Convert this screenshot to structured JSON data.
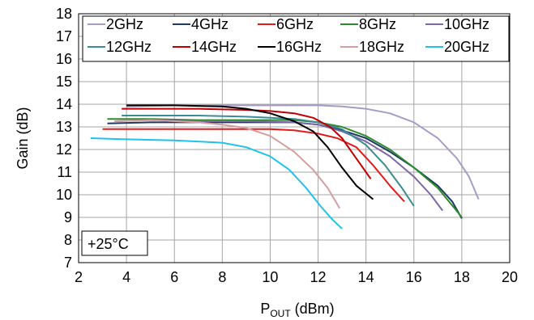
{
  "chart_data": {
    "type": "line",
    "xlabel": {
      "main": "P",
      "sub": "OUT",
      "unit": " (dBm)"
    },
    "ylabel": "Gain (dB)",
    "xlim": [
      2,
      20
    ],
    "ylim": [
      7,
      18
    ],
    "xticks": [
      2,
      4,
      6,
      8,
      10,
      12,
      14,
      16,
      18,
      20
    ],
    "yticks": [
      7,
      8,
      9,
      10,
      11,
      12,
      13,
      14,
      15,
      16,
      17,
      18
    ],
    "grid": true,
    "legend_position": "top",
    "annotation": "+25°C",
    "series": [
      {
        "name": "2GHz",
        "color": "#a99bc7",
        "points": [
          [
            4.0,
            13.9
          ],
          [
            6,
            13.95
          ],
          [
            8,
            13.95
          ],
          [
            10,
            13.95
          ],
          [
            12,
            13.95
          ],
          [
            13,
            13.9
          ],
          [
            14,
            13.8
          ],
          [
            15,
            13.6
          ],
          [
            16,
            13.2
          ],
          [
            17,
            12.5
          ],
          [
            17.8,
            11.6
          ],
          [
            18.3,
            10.8
          ],
          [
            18.7,
            9.8
          ]
        ]
      },
      {
        "name": "4GHz",
        "color": "#1f3864",
        "points": [
          [
            3.2,
            13.15
          ],
          [
            5,
            13.2
          ],
          [
            7,
            13.2
          ],
          [
            9,
            13.2
          ],
          [
            11,
            13.2
          ],
          [
            12,
            13.1
          ],
          [
            13,
            12.85
          ],
          [
            14,
            12.5
          ],
          [
            15,
            11.9
          ],
          [
            16,
            11.2
          ],
          [
            17,
            10.4
          ],
          [
            17.6,
            9.7
          ],
          [
            18,
            8.95
          ]
        ]
      },
      {
        "name": "6GHz",
        "color": "#e31a1c",
        "points": [
          [
            3.0,
            12.9
          ],
          [
            5,
            12.9
          ],
          [
            7,
            12.9
          ],
          [
            9,
            12.9
          ],
          [
            10,
            12.9
          ],
          [
            11,
            12.85
          ],
          [
            12,
            12.7
          ],
          [
            12.8,
            12.5
          ],
          [
            13.6,
            12.1
          ],
          [
            14.3,
            11.3
          ],
          [
            15,
            10.4
          ],
          [
            15.6,
            9.7
          ]
        ]
      },
      {
        "name": "8GHz",
        "color": "#2d8b2d",
        "points": [
          [
            3.2,
            13.35
          ],
          [
            5,
            13.35
          ],
          [
            7,
            13.3
          ],
          [
            9,
            13.3
          ],
          [
            10,
            13.3
          ],
          [
            11,
            13.3
          ],
          [
            12,
            13.2
          ],
          [
            13,
            13.0
          ],
          [
            14,
            12.6
          ],
          [
            15,
            12.0
          ],
          [
            16,
            11.2
          ],
          [
            17,
            10.3
          ],
          [
            17.7,
            9.4
          ],
          [
            18,
            9.0
          ]
        ]
      },
      {
        "name": "10GHz",
        "color": "#7b68a6",
        "points": [
          [
            3.5,
            13.25
          ],
          [
            5,
            13.3
          ],
          [
            7,
            13.25
          ],
          [
            9,
            13.25
          ],
          [
            11,
            13.2
          ],
          [
            12,
            13.1
          ],
          [
            13,
            12.8
          ],
          [
            14,
            12.35
          ],
          [
            15,
            11.7
          ],
          [
            16,
            10.8
          ],
          [
            16.7,
            10.0
          ],
          [
            17.2,
            9.3
          ]
        ]
      },
      {
        "name": "12GHz",
        "color": "#3a8d93",
        "points": [
          [
            3.8,
            13.5
          ],
          [
            5,
            13.5
          ],
          [
            7,
            13.5
          ],
          [
            9,
            13.45
          ],
          [
            10,
            13.4
          ],
          [
            11,
            13.35
          ],
          [
            12,
            13.2
          ],
          [
            13,
            12.9
          ],
          [
            14,
            12.2
          ],
          [
            14.8,
            11.3
          ],
          [
            15.5,
            10.3
          ],
          [
            16.0,
            9.5
          ]
        ]
      },
      {
        "name": "14GHz",
        "color": "#c00000",
        "points": [
          [
            3.8,
            13.8
          ],
          [
            5,
            13.8
          ],
          [
            7,
            13.8
          ],
          [
            9,
            13.75
          ],
          [
            10,
            13.7
          ],
          [
            11,
            13.6
          ],
          [
            11.8,
            13.4
          ],
          [
            12.5,
            13.0
          ],
          [
            13,
            12.5
          ],
          [
            13.6,
            11.6
          ],
          [
            14.2,
            10.7
          ]
        ]
      },
      {
        "name": "16GHz",
        "color": "#000000",
        "points": [
          [
            4.0,
            13.95
          ],
          [
            6,
            13.95
          ],
          [
            8,
            13.9
          ],
          [
            9,
            13.8
          ],
          [
            10,
            13.6
          ],
          [
            11,
            13.25
          ],
          [
            11.8,
            12.8
          ],
          [
            12.4,
            12.1
          ],
          [
            13,
            11.2
          ],
          [
            13.6,
            10.4
          ],
          [
            14.3,
            9.8
          ]
        ]
      },
      {
        "name": "18GHz",
        "color": "#d79d9d",
        "points": [
          [
            3.5,
            13.25
          ],
          [
            5,
            13.3
          ],
          [
            7,
            13.2
          ],
          [
            8,
            13.1
          ],
          [
            9,
            12.95
          ],
          [
            10,
            12.6
          ],
          [
            11,
            11.9
          ],
          [
            11.8,
            11.1
          ],
          [
            12.4,
            10.3
          ],
          [
            12.9,
            9.4
          ]
        ]
      },
      {
        "name": "20GHz",
        "color": "#1ec3ec",
        "points": [
          [
            2.5,
            12.5
          ],
          [
            4,
            12.45
          ],
          [
            6,
            12.4
          ],
          [
            8,
            12.3
          ],
          [
            9,
            12.1
          ],
          [
            10,
            11.7
          ],
          [
            10.8,
            11.1
          ],
          [
            11.5,
            10.3
          ],
          [
            12.1,
            9.5
          ],
          [
            12.6,
            8.9
          ],
          [
            13,
            8.5
          ]
        ]
      }
    ]
  }
}
